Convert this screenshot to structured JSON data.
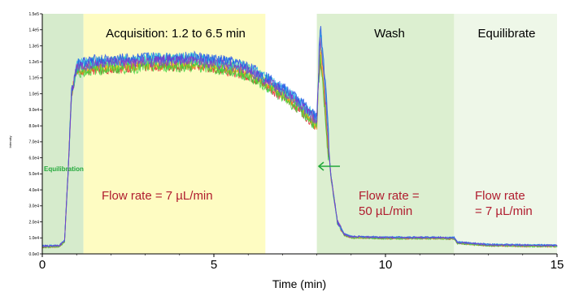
{
  "chart_data": {
    "type": "line",
    "xlabel": "Time (min)",
    "ylabel": "Intensity",
    "xlim": [
      0,
      15
    ],
    "ylim": [
      0,
      150000
    ],
    "x_ticks": [
      "0",
      "5",
      "10",
      "15"
    ],
    "y_ticks": [
      "0.0e0",
      "1.0e4",
      "2.0e4",
      "3.0e4",
      "4.0e4",
      "5.0e4",
      "6.0e4",
      "7.0e4",
      "8.0e4",
      "9.0e4",
      "1.0e5",
      "1.1e5",
      "1.2e5",
      "1.3e5",
      "1.4e5",
      "1.5e5"
    ],
    "regions": [
      {
        "name": "equilibration",
        "x_start": 0,
        "x_end": 1.2,
        "color": "#d6ebcc"
      },
      {
        "name": "acquisition",
        "x_start": 1.2,
        "x_end": 6.5,
        "color": "#fefcc2"
      },
      {
        "name": "wash",
        "x_start": 8.0,
        "x_end": 12.0,
        "color": "#dcefd0"
      },
      {
        "name": "equilibrate",
        "x_start": 12.0,
        "x_end": 15,
        "color": "#eef7e8"
      }
    ],
    "region_labels": {
      "acquisition": "Acquisition: 1.2 to 6.5 min",
      "wash": "Wash",
      "equilibrate": "Equilibrate",
      "equilibration": "Equilibration"
    },
    "flow_labels": {
      "acquisition": "Flow rate = 7 µL/min",
      "wash_line1": "Flow rate =",
      "wash_line2": "50 µL/min",
      "equil_line1": "Flow rate",
      "equil_line2": "= 7 µL/min"
    },
    "profile": {
      "x": [
        0,
        0.5,
        0.65,
        0.75,
        0.85,
        1.0,
        1.5,
        2.5,
        3.5,
        4.5,
        5.5,
        6.0,
        6.5,
        7.0,
        7.5,
        8.0,
        8.05,
        8.1,
        8.2,
        8.4,
        8.6,
        8.8,
        9.0,
        10.0,
        11.0,
        12.0,
        12.1,
        13.0,
        14.0,
        15.0
      ],
      "y": [
        4500,
        5000,
        8000,
        50000,
        100000,
        116000,
        118000,
        119000,
        120000,
        120000,
        117000,
        114000,
        108000,
        101000,
        93000,
        82000,
        110000,
        132000,
        110000,
        50000,
        20000,
        12000,
        10500,
        10000,
        10000,
        9800,
        7000,
        5500,
        5200,
        5000
      ]
    },
    "series": [
      {
        "name": "",
        "color": "#e0202a",
        "offset": -2500
      },
      {
        "name": "",
        "color": "#f08a14",
        "offset": -1500
      },
      {
        "name": "",
        "color": "#d8d820",
        "offset": -500
      },
      {
        "name": "",
        "color": "#3ad03a",
        "offset": -3000
      },
      {
        "name": "",
        "color": "#1fc8a8",
        "offset": 1500
      },
      {
        "name": "",
        "color": "#28b8e8",
        "offset": 2500
      },
      {
        "name": "",
        "color": "#2850e8",
        "offset": 3000
      },
      {
        "name": "",
        "color": "#8838c8",
        "offset": 500
      }
    ],
    "grid": false
  }
}
